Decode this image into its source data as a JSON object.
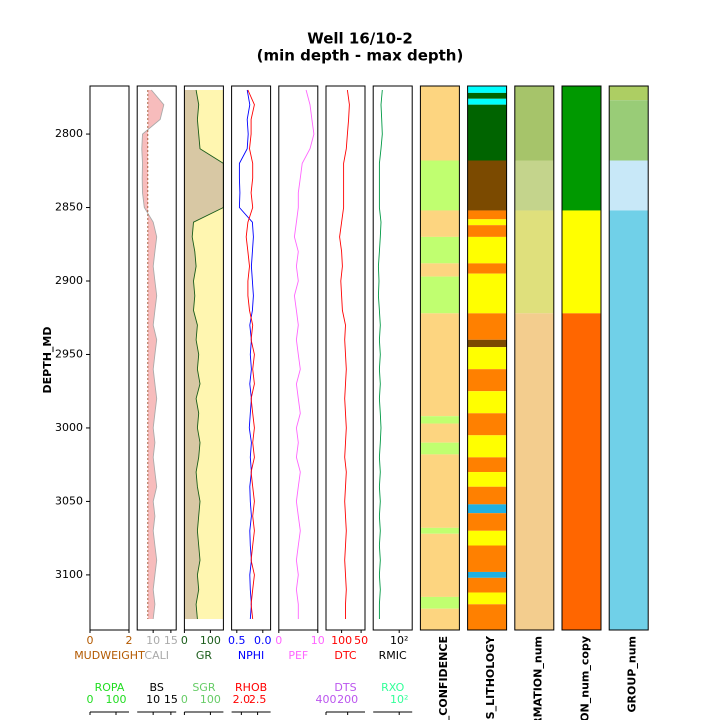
{
  "chart_data": {
    "type": "welllog",
    "title": "Well 16/10-2",
    "subtitle": "(min depth - max depth)",
    "y_label": "DEPTH_MD",
    "ylim": [
      2767.3,
      3137.5
    ],
    "yticks": [
      2800,
      2850,
      2900,
      2950,
      3000,
      3050,
      3100
    ],
    "depths": [
      2770,
      2780,
      2790,
      2800,
      2810,
      2820,
      2830,
      2840,
      2850,
      2860,
      2870,
      2880,
      2890,
      2900,
      2910,
      2920,
      2930,
      2940,
      2950,
      2960,
      2970,
      2980,
      2990,
      3000,
      3010,
      3020,
      3030,
      3040,
      3050,
      3060,
      3070,
      3080,
      3090,
      3100,
      3110,
      3120,
      3130
    ],
    "tracks": [
      {
        "curves": [
          {
            "name": "MUDWEIGHT",
            "color": "#b35900",
            "xlim": [
              0,
              2
            ],
            "xticks": [
              0,
              2
            ]
          },
          {
            "name": "ROPA",
            "color": "#22dd22",
            "xlim": [
              0,
              150
            ],
            "xticks": [
              0,
              100
            ]
          }
        ]
      },
      {
        "curves": [
          {
            "name": "CALI",
            "color": "#aaaaaa",
            "xlim": [
              5.5,
              16.5
            ],
            "xticks": [
              10,
              15
            ],
            "fill_below": "#f4a0a0",
            "values": [
              9.5,
              13,
              12,
              7,
              6.8,
              7,
              6.9,
              7,
              7.5,
              10,
              11,
              10.5,
              10,
              10.5,
              11,
              10.5,
              10,
              11,
              10.5,
              10,
              10.5,
              11,
              10.5,
              10,
              10.5,
              10,
              10.5,
              11,
              10,
              10.5,
              10,
              10.5,
              11,
              10.5,
              10,
              10.5,
              10
            ]
          },
          {
            "name": "BS",
            "color": "#000000",
            "line_color": "#a0522d",
            "dash": true,
            "xlim": [
              5.5,
              16.5
            ],
            "xticks": [
              10,
              15
            ],
            "values": [
              8.5,
              8.5,
              8.5,
              8.5,
              8.5,
              8.5,
              8.5,
              8.5,
              8.5,
              8.5,
              8.5,
              8.5,
              8.5,
              8.5,
              8.5,
              8.5,
              8.5,
              8.5,
              8.5,
              8.5,
              8.5,
              8.5,
              8.5,
              8.5,
              8.5,
              8.5,
              8.5,
              8.5,
              8.5,
              8.5,
              8.5,
              8.5,
              8.5,
              8.5,
              8.5,
              8.5,
              8.5
            ]
          }
        ]
      },
      {
        "curves": [
          {
            "name": "GR",
            "color": "#1a5c1a",
            "xlim": [
              0,
              150
            ],
            "xticks": [
              0,
              100
            ],
            "fill_left": "#d8c8a4",
            "fill_right": "#fff6b0",
            "values": [
              45,
              55,
              50,
              55,
              60,
              150,
              150,
              150,
              150,
              35,
              30,
              40,
              45,
              35,
              40,
              35,
              50,
              45,
              55,
              50,
              60,
              45,
              55,
              50,
              60,
              55,
              45,
              50,
              60,
              55,
              50,
              55,
              60,
              50,
              55,
              45,
              50
            ]
          },
          {
            "name": "SGR",
            "color": "#66cc66",
            "xlim": [
              0,
              150
            ],
            "xticks": [
              0,
              100
            ]
          }
        ]
      },
      {
        "curves": [
          {
            "name": "NPHI",
            "color": "#0000ff",
            "xlim": [
              0.6,
              -0.15
            ],
            "xticks": [
              0.5,
              {
                "value": 0,
                "label": "0.0"
              }
            ],
            "values": [
              0.3,
              0.25,
              0.3,
              0.28,
              0.3,
              0.45,
              0.45,
              0.44,
              0.45,
              0.2,
              0.18,
              0.2,
              0.22,
              0.2,
              0.18,
              0.2,
              0.25,
              0.22,
              0.24,
              0.22,
              0.25,
              0.22,
              0.24,
              0.26,
              0.22,
              0.24,
              0.22,
              0.25,
              0.24,
              0.22,
              0.25,
              0.24,
              0.22,
              0.25,
              0.24,
              0.22,
              0.24
            ]
          },
          {
            "name": "RHOB",
            "color": "#ff0000",
            "xlim": [
              1.7,
              2.9
            ],
            "xticks": [
              {
                "value": 2,
                "label": "2.0"
              },
              2.5
            ],
            "values": [
              2.2,
              2.4,
              2.3,
              2.3,
              2.25,
              2.35,
              2.35,
              2.3,
              2.35,
              2.2,
              2.15,
              2.2,
              2.25,
              2.2,
              2.2,
              2.25,
              2.35,
              2.3,
              2.4,
              2.35,
              2.4,
              2.3,
              2.35,
              2.4,
              2.35,
              2.4,
              2.3,
              2.35,
              2.4,
              2.35,
              2.4,
              2.35,
              2.3,
              2.4,
              2.35,
              2.3,
              2.35
            ]
          }
        ]
      },
      {
        "curves": [
          {
            "name": "PEF",
            "color": "#ff66ff",
            "xlim": [
              0,
              10
            ],
            "xticks": [
              0,
              10
            ],
            "values": [
              7,
              8,
              8.5,
              9,
              8,
              6,
              5.5,
              5,
              5,
              4.5,
              4,
              5,
              4.5,
              5,
              4,
              4.5,
              5,
              4.5,
              5,
              5.5,
              4.5,
              5,
              5.5,
              4.5,
              5,
              4.5,
              5.5,
              5,
              4.5,
              5,
              5.5,
              5,
              4.5,
              5,
              4.5,
              5,
              5
            ]
          }
        ]
      },
      {
        "curves": [
          {
            "name": "DTC",
            "color": "#ff0000",
            "xlim": [
              140,
              40
            ],
            "xticks": [
              100,
              50
            ],
            "values": [
              85,
              80,
              82,
              85,
              88,
              95,
              95,
              95,
              95,
              100,
              105,
              100,
              98,
              102,
              100,
              98,
              90,
              92,
              90,
              88,
              90,
              92,
              90,
              88,
              90,
              92,
              88,
              90,
              92,
              90,
              88,
              90,
              92,
              90,
              88,
              90,
              90
            ]
          },
          {
            "name": "DTS",
            "color": "#bb55ee",
            "xlim": [
              400,
              40
            ],
            "xticks": [
              400,
              200
            ]
          }
        ]
      },
      {
        "curves": [
          {
            "name": "RMIC",
            "color": "#000000",
            "line_color": "#009944",
            "log": true,
            "xlim": [
              1,
              1000
            ],
            "xticks": [
              {
                "value": 100,
                "label": "10²"
              }
            ],
            "values": [
              5,
              4,
              4.5,
              5,
              4,
              3,
              3,
              3,
              3,
              4,
              3.5,
              3,
              2.5,
              2.8,
              2.5,
              3,
              3.5,
              3,
              3.5,
              3,
              3.5,
              3,
              3.5,
              4,
              3.5,
              3,
              3.5,
              3,
              3.5,
              3,
              3.5,
              3,
              3.5,
              3,
              3.5,
              3,
              3
            ]
          },
          {
            "name": "RXO",
            "color": "#33ff99",
            "log": true,
            "xlim": [
              1,
              1000
            ],
            "xticks": [
              {
                "value": 100,
                "label": "10²"
              }
            ]
          }
        ]
      },
      {
        "label": "S_CONFIDENCE",
        "intervals": [
          {
            "top": 2767.3,
            "base": 2818,
            "color": "#fdd580"
          },
          {
            "top": 2818,
            "base": 2852,
            "color": "#c0ff70"
          },
          {
            "top": 2852,
            "base": 2870,
            "color": "#fdd580"
          },
          {
            "top": 2870,
            "base": 2888,
            "color": "#c0ff70"
          },
          {
            "top": 2888,
            "base": 2897,
            "color": "#fdd580"
          },
          {
            "top": 2897,
            "base": 2922,
            "color": "#c0ff70"
          },
          {
            "top": 2922,
            "base": 2992,
            "color": "#fdd580"
          },
          {
            "top": 2992,
            "base": 2997,
            "color": "#c0ff70"
          },
          {
            "top": 2997,
            "base": 3010,
            "color": "#fdd580"
          },
          {
            "top": 3010,
            "base": 3018,
            "color": "#c0ff70"
          },
          {
            "top": 3018,
            "base": 3068,
            "color": "#fdd580"
          },
          {
            "top": 3068,
            "base": 3072,
            "color": "#c0ff70"
          },
          {
            "top": 3072,
            "base": 3115,
            "color": "#fdd580"
          },
          {
            "top": 3115,
            "base": 3123,
            "color": "#c0ff70"
          },
          {
            "top": 3123,
            "base": 3137.5,
            "color": "#fdd580"
          }
        ]
      },
      {
        "label": "ES_LITHOLOGY",
        "intervals": [
          {
            "top": 2767.3,
            "base": 2772,
            "color": "#00ffff"
          },
          {
            "top": 2772,
            "base": 2776,
            "color": "#006400"
          },
          {
            "top": 2776,
            "base": 2780,
            "color": "#00ffff"
          },
          {
            "top": 2780,
            "base": 2818,
            "color": "#006400"
          },
          {
            "top": 2818,
            "base": 2852,
            "color": "#7b4a00"
          },
          {
            "top": 2852,
            "base": 2858,
            "color": "#ff8000"
          },
          {
            "top": 2858,
            "base": 2862,
            "color": "#ffff00"
          },
          {
            "top": 2862,
            "base": 2870,
            "color": "#ff8000"
          },
          {
            "top": 2870,
            "base": 2888,
            "color": "#ffff00"
          },
          {
            "top": 2888,
            "base": 2895,
            "color": "#ff8000"
          },
          {
            "top": 2895,
            "base": 2922,
            "color": "#ffff00"
          },
          {
            "top": 2922,
            "base": 2940,
            "color": "#ff8000"
          },
          {
            "top": 2940,
            "base": 2945,
            "color": "#7b4a00"
          },
          {
            "top": 2945,
            "base": 2960,
            "color": "#ffff00"
          },
          {
            "top": 2960,
            "base": 2975,
            "color": "#ff8000"
          },
          {
            "top": 2975,
            "base": 2990,
            "color": "#ffff00"
          },
          {
            "top": 2990,
            "base": 3005,
            "color": "#ff8000"
          },
          {
            "top": 3005,
            "base": 3020,
            "color": "#ffff00"
          },
          {
            "top": 3020,
            "base": 3030,
            "color": "#ff8000"
          },
          {
            "top": 3030,
            "base": 3040,
            "color": "#ffff00"
          },
          {
            "top": 3040,
            "base": 3052,
            "color": "#ff8000"
          },
          {
            "top": 3052,
            "base": 3058,
            "color": "#20b0e0"
          },
          {
            "top": 3058,
            "base": 3070,
            "color": "#ff8000"
          },
          {
            "top": 3070,
            "base": 3080,
            "color": "#ffff00"
          },
          {
            "top": 3080,
            "base": 3098,
            "color": "#ff8000"
          },
          {
            "top": 3098,
            "base": 3102,
            "color": "#20b0e0"
          },
          {
            "top": 3102,
            "base": 3112,
            "color": "#ff8000"
          },
          {
            "top": 3112,
            "base": 3120,
            "color": "#ffff00"
          },
          {
            "top": 3120,
            "base": 3137.5,
            "color": "#ff8000"
          }
        ]
      },
      {
        "label": "RMATION_num",
        "intervals": [
          {
            "top": 2767.3,
            "base": 2818,
            "color": "#a6c46a"
          },
          {
            "top": 2818,
            "base": 2852,
            "color": "#c4d48c"
          },
          {
            "top": 2852,
            "base": 2922,
            "color": "#dfe07c"
          },
          {
            "top": 2922,
            "base": 3137.5,
            "color": "#f3cd8e"
          }
        ]
      },
      {
        "label": "TION_num_copy",
        "intervals": [
          {
            "top": 2767.3,
            "base": 2852,
            "color": "#009900"
          },
          {
            "top": 2852,
            "base": 2922,
            "color": "#ffff00"
          },
          {
            "top": 2922,
            "base": 3137.5,
            "color": "#ff6600"
          }
        ]
      },
      {
        "label": "GROUP_num",
        "intervals": [
          {
            "top": 2767.3,
            "base": 2777,
            "color": "#adce63"
          },
          {
            "top": 2777,
            "base": 2818,
            "color": "#99cc77"
          },
          {
            "top": 2818,
            "base": 2852,
            "color": "#c8e8f8"
          },
          {
            "top": 2852,
            "base": 3137.5,
            "color": "#70d0e8"
          }
        ]
      }
    ]
  }
}
